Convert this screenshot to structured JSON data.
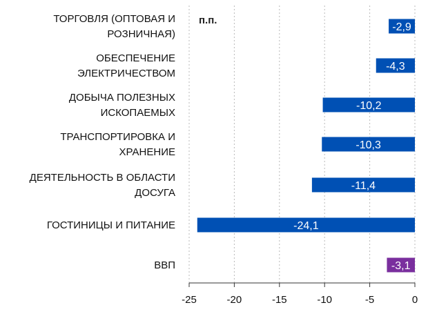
{
  "chart_data": {
    "type": "bar",
    "orientation": "horizontal",
    "unit": "п.п.",
    "categories": [
      [
        "ТОРГОВЛЯ (ОПТОВАЯ И",
        "РОЗНИЧНАЯ)"
      ],
      [
        "ОБЕСПЕЧЕНИЕ",
        "ЭЛЕКТРИЧЕСТВОМ"
      ],
      [
        "ДОБЫЧА ПОЛЕЗНЫХ",
        "ИСКОПАЕМЫХ"
      ],
      [
        "ТРАНСПОРТИРОВКА И",
        "ХРАНЕНИЕ"
      ],
      [
        "ДЕЯТЕЛЬНОСТЬ В ОБЛАСТИ",
        "ДОСУГА"
      ],
      [
        "ГОСТИНИЦЫ И ПИТАНИЕ"
      ],
      [
        "ВВП"
      ]
    ],
    "values": [
      -2.9,
      -4.3,
      -10.2,
      -10.3,
      -11.4,
      -24.1,
      -3.1
    ],
    "value_labels": [
      "-2,9",
      "-4,3",
      "-10,2",
      "-10,3",
      "-11,4",
      "-24,1",
      "-3,1"
    ],
    "bar_colors": [
      "#0050b4",
      "#0050b4",
      "#0050b4",
      "#0050b4",
      "#0050b4",
      "#0050b4",
      "#7a2f9e"
    ],
    "xlim": [
      -25,
      0
    ],
    "xticks": [
      -25,
      -20,
      -15,
      -10,
      -5,
      0
    ],
    "xtick_labels": [
      "-25",
      "-20",
      "-15",
      "-10",
      "-5",
      "0"
    ],
    "grid": "vertical dotted",
    "legend": "none"
  }
}
